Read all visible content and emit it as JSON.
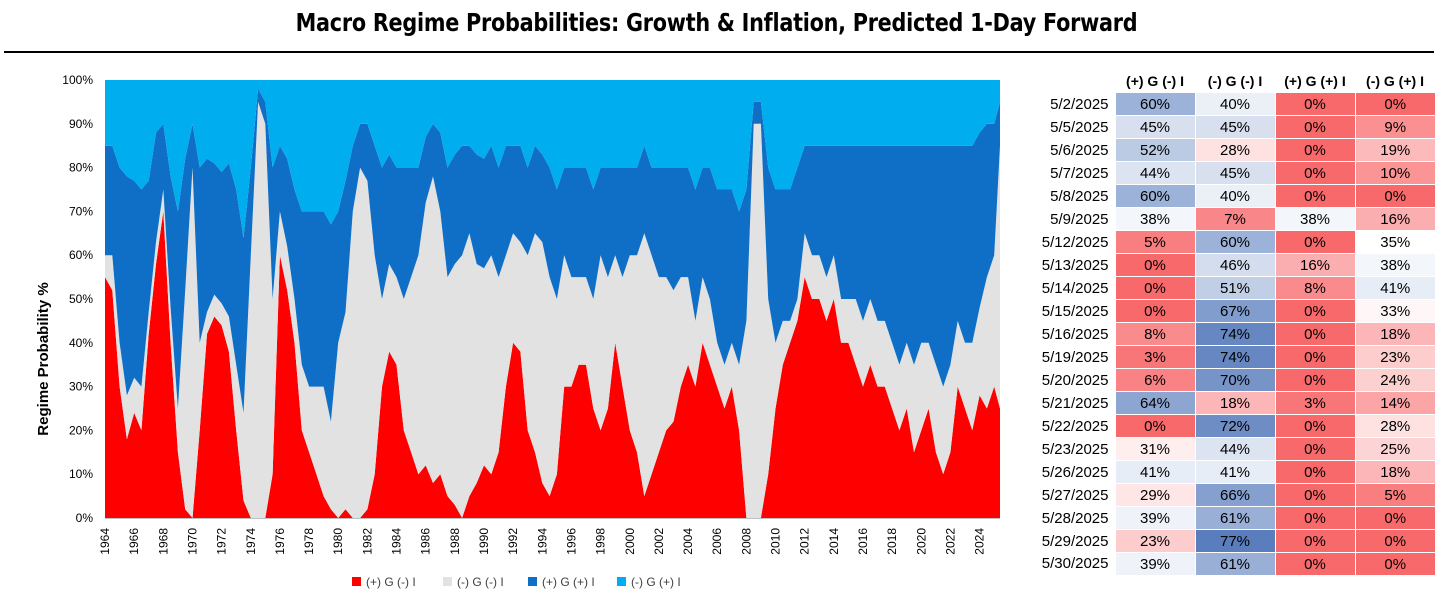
{
  "title": "Macro Regime Probabilities: Growth & Inflation, Predicted 1-Day Forward",
  "colors": {
    "g_up_i_down": "#ff0000",
    "g_down_i_down": "#e2e2e2",
    "g_up_i_up": "#0f6fc6",
    "g_down_i_up": "#00aeef"
  },
  "chart_data": {
    "type": "area",
    "stacked": true,
    "title": "",
    "xlabel": "",
    "ylabel": "Regime Probability %",
    "xlim": [
      1964,
      2025.4
    ],
    "ylim": [
      0,
      100
    ],
    "x_ticks": [
      "1964",
      "1966",
      "1968",
      "1970",
      "1972",
      "1974",
      "1976",
      "1978",
      "1980",
      "1982",
      "1984",
      "1986",
      "1988",
      "1990",
      "1992",
      "1994",
      "1996",
      "1998",
      "2000",
      "2002",
      "2004",
      "2006",
      "2008",
      "2010",
      "2012",
      "2014",
      "2016",
      "2018",
      "2020",
      "2022",
      "2024"
    ],
    "y_ticks": [
      "0%",
      "10%",
      "20%",
      "30%",
      "40%",
      "50%",
      "60%",
      "70%",
      "80%",
      "90%",
      "100%"
    ],
    "legend_position": "bottom",
    "series_names": [
      "(+) G (-) I",
      "(-) G (-) I",
      "(+) G (+) I",
      "(-) G (+) I"
    ],
    "x": [
      1964.0,
      1964.5,
      1965.0,
      1965.5,
      1966.0,
      1966.5,
      1967.0,
      1967.5,
      1968.0,
      1968.5,
      1969.0,
      1969.5,
      1970.0,
      1970.5,
      1971.0,
      1971.5,
      1972.0,
      1972.5,
      1973.0,
      1973.5,
      1974.0,
      1974.5,
      1975.0,
      1975.5,
      1976.0,
      1976.5,
      1977.0,
      1977.5,
      1978.0,
      1978.5,
      1979.0,
      1979.5,
      1980.0,
      1980.5,
      1981.0,
      1981.5,
      1982.0,
      1982.5,
      1983.0,
      1983.5,
      1984.0,
      1984.5,
      1985.0,
      1985.5,
      1986.0,
      1986.5,
      1987.0,
      1987.5,
      1988.0,
      1988.5,
      1989.0,
      1989.5,
      1990.0,
      1990.5,
      1991.0,
      1991.5,
      1992.0,
      1992.5,
      1993.0,
      1993.5,
      1994.0,
      1994.5,
      1995.0,
      1995.5,
      1996.0,
      1996.5,
      1997.0,
      1997.5,
      1998.0,
      1998.5,
      1999.0,
      1999.5,
      2000.0,
      2000.5,
      2001.0,
      2001.5,
      2002.0,
      2002.5,
      2003.0,
      2003.5,
      2004.0,
      2004.5,
      2005.0,
      2005.5,
      2006.0,
      2006.5,
      2007.0,
      2007.5,
      2008.0,
      2008.5,
      2009.0,
      2009.5,
      2010.0,
      2010.5,
      2011.0,
      2011.5,
      2012.0,
      2012.5,
      2013.0,
      2013.5,
      2014.0,
      2014.5,
      2015.0,
      2015.5,
      2016.0,
      2016.5,
      2017.0,
      2017.5,
      2018.0,
      2018.5,
      2019.0,
      2019.5,
      2020.0,
      2020.5,
      2021.0,
      2021.5,
      2022.0,
      2022.5,
      2023.0,
      2023.5,
      2024.0,
      2024.5,
      2025.0,
      2025.4
    ],
    "series": [
      {
        "name": "(+) G (-) I",
        "values": [
          55,
          52,
          30,
          18,
          24,
          20,
          42,
          58,
          70,
          40,
          15,
          2,
          0,
          20,
          42,
          46,
          44,
          38,
          20,
          4,
          0,
          0,
          0,
          10,
          60,
          52,
          40,
          20,
          15,
          10,
          5,
          2,
          0,
          2,
          0,
          0,
          2,
          10,
          30,
          38,
          35,
          20,
          15,
          10,
          12,
          8,
          10,
          5,
          3,
          0,
          5,
          8,
          12,
          10,
          15,
          30,
          40,
          38,
          20,
          15,
          8,
          5,
          10,
          30,
          30,
          35,
          35,
          25,
          20,
          25,
          40,
          30,
          20,
          15,
          5,
          10,
          15,
          20,
          22,
          30,
          35,
          30,
          40,
          35,
          30,
          25,
          30,
          20,
          0,
          0,
          0,
          10,
          25,
          35,
          40,
          45,
          55,
          50,
          50,
          45,
          50,
          40,
          40,
          35,
          30,
          35,
          30,
          30,
          25,
          20,
          25,
          15,
          20,
          25,
          15,
          10,
          15,
          30,
          25,
          20,
          28,
          25,
          30,
          25
        ]
      },
      {
        "name": "(-) G (-) I",
        "values": [
          5,
          8,
          10,
          10,
          8,
          10,
          5,
          5,
          5,
          8,
          10,
          50,
          80,
          20,
          5,
          5,
          5,
          8,
          15,
          20,
          60,
          95,
          90,
          40,
          10,
          10,
          10,
          15,
          15,
          20,
          25,
          20,
          40,
          45,
          70,
          80,
          75,
          50,
          20,
          20,
          20,
          30,
          40,
          50,
          60,
          70,
          60,
          50,
          55,
          60,
          60,
          50,
          45,
          50,
          40,
          30,
          25,
          25,
          40,
          50,
          55,
          50,
          40,
          30,
          25,
          20,
          20,
          25,
          40,
          30,
          20,
          25,
          40,
          45,
          60,
          50,
          40,
          35,
          30,
          25,
          20,
          15,
          15,
          15,
          10,
          10,
          10,
          15,
          45,
          90,
          90,
          40,
          15,
          10,
          5,
          5,
          10,
          10,
          10,
          10,
          10,
          10,
          10,
          15,
          15,
          15,
          15,
          15,
          15,
          15,
          15,
          20,
          20,
          15,
          20,
          20,
          20,
          15,
          15,
          20,
          20,
          30,
          30,
          60
        ]
      },
      {
        "name": "(+) G (+) I",
        "values": [
          25,
          25,
          40,
          50,
          45,
          45,
          30,
          25,
          15,
          30,
          45,
          30,
          10,
          40,
          35,
          30,
          30,
          35,
          40,
          40,
          20,
          3,
          5,
          30,
          15,
          20,
          25,
          35,
          40,
          40,
          40,
          45,
          30,
          30,
          15,
          10,
          13,
          25,
          30,
          25,
          25,
          30,
          25,
          20,
          15,
          12,
          18,
          25,
          25,
          25,
          20,
          25,
          25,
          25,
          25,
          25,
          20,
          22,
          20,
          20,
          20,
          25,
          25,
          20,
          25,
          25,
          25,
          25,
          20,
          25,
          20,
          25,
          20,
          20,
          20,
          20,
          25,
          25,
          28,
          25,
          25,
          30,
          25,
          30,
          35,
          40,
          35,
          35,
          30,
          5,
          5,
          30,
          35,
          30,
          30,
          30,
          20,
          25,
          25,
          30,
          25,
          35,
          35,
          35,
          40,
          35,
          40,
          40,
          45,
          50,
          45,
          50,
          45,
          45,
          50,
          55,
          50,
          40,
          45,
          45,
          40,
          35,
          30,
          10
        ]
      },
      {
        "name": "(-) G (+) I",
        "values": [
          15,
          15,
          20,
          22,
          23,
          25,
          23,
          12,
          10,
          22,
          30,
          18,
          10,
          20,
          18,
          19,
          21,
          19,
          25,
          36,
          20,
          2,
          5,
          20,
          15,
          18,
          25,
          30,
          30,
          30,
          30,
          33,
          30,
          23,
          15,
          10,
          10,
          15,
          20,
          17,
          20,
          20,
          20,
          20,
          13,
          10,
          12,
          20,
          17,
          15,
          15,
          17,
          18,
          15,
          20,
          15,
          15,
          15,
          20,
          15,
          17,
          20,
          25,
          20,
          20,
          20,
          20,
          25,
          20,
          20,
          20,
          20,
          20,
          20,
          15,
          20,
          20,
          20,
          20,
          20,
          20,
          25,
          20,
          20,
          25,
          25,
          25,
          30,
          25,
          5,
          5,
          20,
          25,
          25,
          25,
          20,
          15,
          15,
          15,
          15,
          15,
          15,
          15,
          15,
          15,
          15,
          15,
          15,
          15,
          15,
          15,
          15,
          15,
          15,
          15,
          15,
          15,
          15,
          15,
          15,
          12,
          10,
          10,
          5
        ]
      }
    ]
  },
  "table": {
    "headers": [
      "(+) G (-) I",
      "(-) G (-) I",
      "(+) G (+) I",
      "(-) G (+) I"
    ],
    "rows": [
      {
        "date": "5/2/2025",
        "cells": [
          "60%",
          "40%",
          "0%",
          "0%"
        ],
        "values": [
          60,
          40,
          0,
          0
        ]
      },
      {
        "date": "5/5/2025",
        "cells": [
          "45%",
          "45%",
          "0%",
          "9%"
        ],
        "values": [
          45,
          45,
          0,
          9
        ]
      },
      {
        "date": "5/6/2025",
        "cells": [
          "52%",
          "28%",
          "0%",
          "19%"
        ],
        "values": [
          52,
          28,
          0,
          19
        ]
      },
      {
        "date": "5/7/2025",
        "cells": [
          "44%",
          "45%",
          "0%",
          "10%"
        ],
        "values": [
          44,
          45,
          0,
          10
        ]
      },
      {
        "date": "5/8/2025",
        "cells": [
          "60%",
          "40%",
          "0%",
          "0%"
        ],
        "values": [
          60,
          40,
          0,
          0
        ]
      },
      {
        "date": "5/9/2025",
        "cells": [
          "38%",
          "7%",
          "38%",
          "16%"
        ],
        "values": [
          38,
          7,
          38,
          16
        ]
      },
      {
        "date": "5/12/2025",
        "cells": [
          "5%",
          "60%",
          "0%",
          "35%"
        ],
        "values": [
          5,
          60,
          0,
          35
        ]
      },
      {
        "date": "5/13/2025",
        "cells": [
          "0%",
          "46%",
          "16%",
          "38%"
        ],
        "values": [
          0,
          46,
          16,
          38
        ]
      },
      {
        "date": "5/14/2025",
        "cells": [
          "0%",
          "51%",
          "8%",
          "41%"
        ],
        "values": [
          0,
          51,
          8,
          41
        ]
      },
      {
        "date": "5/15/2025",
        "cells": [
          "0%",
          "67%",
          "0%",
          "33%"
        ],
        "values": [
          0,
          67,
          0,
          33
        ]
      },
      {
        "date": "5/16/2025",
        "cells": [
          "8%",
          "74%",
          "0%",
          "18%"
        ],
        "values": [
          8,
          74,
          0,
          18
        ]
      },
      {
        "date": "5/19/2025",
        "cells": [
          "3%",
          "74%",
          "0%",
          "23%"
        ],
        "values": [
          3,
          74,
          0,
          23
        ]
      },
      {
        "date": "5/20/2025",
        "cells": [
          "6%",
          "70%",
          "0%",
          "24%"
        ],
        "values": [
          6,
          70,
          0,
          24
        ]
      },
      {
        "date": "5/21/2025",
        "cells": [
          "64%",
          "18%",
          "3%",
          "14%"
        ],
        "values": [
          64,
          18,
          3,
          14
        ]
      },
      {
        "date": "5/22/2025",
        "cells": [
          "0%",
          "72%",
          "0%",
          "28%"
        ],
        "values": [
          0,
          72,
          0,
          28
        ]
      },
      {
        "date": "5/23/2025",
        "cells": [
          "31%",
          "44%",
          "0%",
          "25%"
        ],
        "values": [
          31,
          44,
          0,
          25
        ]
      },
      {
        "date": "5/26/2025",
        "cells": [
          "41%",
          "41%",
          "0%",
          "18%"
        ],
        "values": [
          41,
          41,
          0,
          18
        ]
      },
      {
        "date": "5/27/2025",
        "cells": [
          "29%",
          "66%",
          "0%",
          "5%"
        ],
        "values": [
          29,
          66,
          0,
          5
        ]
      },
      {
        "date": "5/28/2025",
        "cells": [
          "39%",
          "61%",
          "0%",
          "0%"
        ],
        "values": [
          39,
          61,
          0,
          0
        ]
      },
      {
        "date": "5/29/2025",
        "cells": [
          "23%",
          "77%",
          "0%",
          "0%"
        ],
        "values": [
          23,
          77,
          0,
          0
        ]
      },
      {
        "date": "5/30/2025",
        "cells": [
          "39%",
          "61%",
          "0%",
          "0%"
        ],
        "values": [
          39,
          61,
          0,
          0
        ]
      }
    ]
  }
}
